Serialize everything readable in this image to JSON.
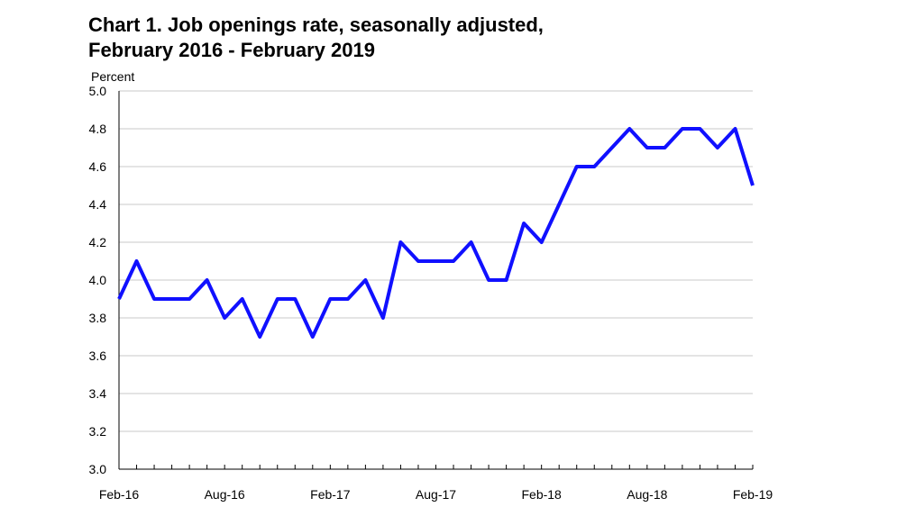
{
  "title_line1": "Chart 1. Job openings rate, seasonally adjusted,",
  "title_line2": "February 2016 - February 2019",
  "colors": {
    "line": "#1010ff",
    "grid": "#c8c8c8",
    "axis": "#000000"
  },
  "chart_data": {
    "type": "line",
    "title": "Chart 1. Job openings rate, seasonally adjusted, February 2016 - February 2019",
    "ylabel": "Percent",
    "xlabel": "",
    "ylim": [
      3.0,
      5.0
    ],
    "yticks": [
      "3.0",
      "3.2",
      "3.4",
      "3.6",
      "3.8",
      "4.0",
      "4.2",
      "4.4",
      "4.6",
      "4.8",
      "5.0"
    ],
    "xtick_labels": [
      {
        "label": "Feb-16",
        "index": 0
      },
      {
        "label": "Aug-16",
        "index": 6
      },
      {
        "label": "Feb-17",
        "index": 12
      },
      {
        "label": "Aug-17",
        "index": 18
      },
      {
        "label": "Feb-18",
        "index": 24
      },
      {
        "label": "Aug-18",
        "index": 30
      },
      {
        "label": "Feb-19",
        "index": 36
      }
    ],
    "grid": "horizontal",
    "legend": "none",
    "x": [
      "Feb-16",
      "Mar-16",
      "Apr-16",
      "May-16",
      "Jun-16",
      "Jul-16",
      "Aug-16",
      "Sep-16",
      "Oct-16",
      "Nov-16",
      "Dec-16",
      "Jan-17",
      "Feb-17",
      "Mar-17",
      "Apr-17",
      "May-17",
      "Jun-17",
      "Jul-17",
      "Aug-17",
      "Sep-17",
      "Oct-17",
      "Nov-17",
      "Dec-17",
      "Jan-18",
      "Feb-18",
      "Mar-18",
      "Apr-18",
      "May-18",
      "Jun-18",
      "Jul-18",
      "Aug-18",
      "Sep-18",
      "Oct-18",
      "Nov-18",
      "Dec-18",
      "Jan-19",
      "Feb-19"
    ],
    "series": [
      {
        "values": [
          3.9,
          4.1,
          3.9,
          3.9,
          3.9,
          4.0,
          3.8,
          3.9,
          3.7,
          3.9,
          3.9,
          3.7,
          3.9,
          3.9,
          4.0,
          3.8,
          4.2,
          4.1,
          4.1,
          4.1,
          4.2,
          4.0,
          4.0,
          4.3,
          4.2,
          4.4,
          4.6,
          4.6,
          4.7,
          4.8,
          4.7,
          4.7,
          4.8,
          4.8,
          4.7,
          4.8,
          4.5
        ]
      }
    ]
  }
}
